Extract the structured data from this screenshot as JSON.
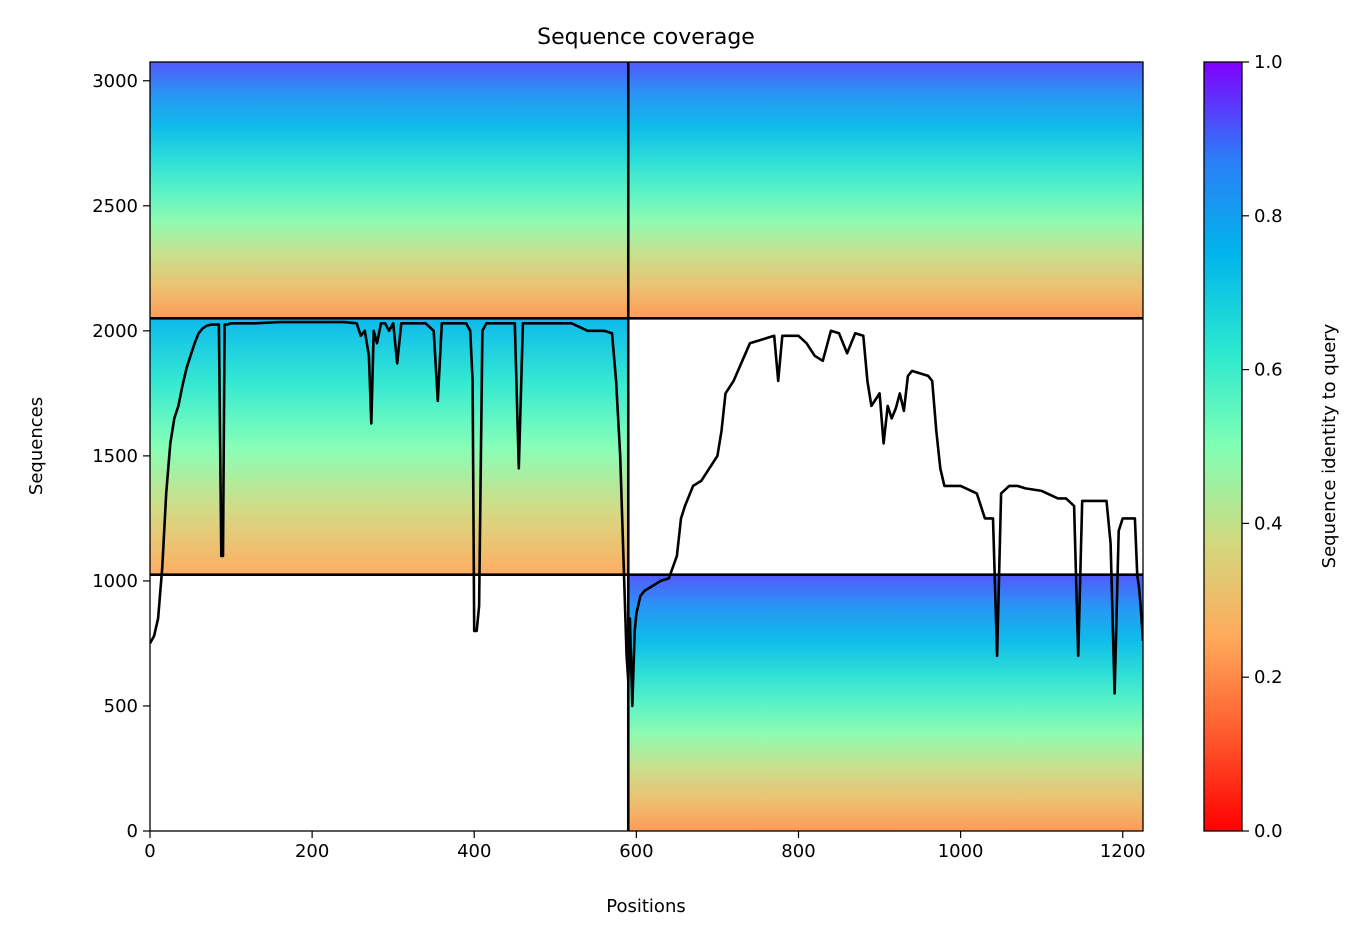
{
  "chart_data": {
    "type": "heatmap",
    "title": "Sequence coverage",
    "xlabel": "Positions",
    "ylabel": "Sequences",
    "xlim": [
      0,
      1225
    ],
    "ylim": [
      0,
      3075
    ],
    "xticks": [
      0,
      200,
      400,
      600,
      800,
      1000,
      1200
    ],
    "yticks": [
      0,
      500,
      1000,
      1500,
      2000,
      2500,
      3000
    ],
    "grid": false,
    "colorbar": {
      "label": "Sequence identity to query",
      "colormap": "rainbow_r",
      "range": [
        0,
        1
      ],
      "ticks": [
        0.0,
        0.2,
        0.4,
        0.6,
        0.8,
        1.0
      ],
      "tick_labels": [
        "0.0",
        "0.2",
        "0.4",
        "0.6",
        "0.8",
        "1.0"
      ]
    },
    "segment_boundaries": {
      "x": [
        590
      ],
      "y": [
        1025,
        2050
      ]
    },
    "blocks": [
      {
        "name": "top-left",
        "x": [
          0,
          590
        ],
        "y": [
          2050,
          3075
        ],
        "identity_top": 0.92,
        "identity_bottom": 0.22
      },
      {
        "name": "middle-left",
        "x": [
          0,
          590
        ],
        "y": [
          1025,
          2050
        ],
        "identity_top": 0.75,
        "identity_bottom": 0.25
      },
      {
        "name": "top-right",
        "x": [
          590,
          1225
        ],
        "y": [
          2050,
          3075
        ],
        "identity_top": 0.92,
        "identity_bottom": 0.22
      },
      {
        "name": "bottom-right",
        "x": [
          590,
          1225
        ],
        "y": [
          0,
          1025
        ],
        "identity_top": 0.92,
        "identity_bottom": 0.22
      }
    ],
    "coverage_line": {
      "color": "#000000",
      "x": [
        0,
        5,
        10,
        15,
        20,
        25,
        30,
        35,
        40,
        45,
        50,
        55,
        60,
        65,
        70,
        75,
        80,
        85,
        88,
        90,
        92,
        95,
        100,
        130,
        160,
        200,
        240,
        255,
        260,
        265,
        270,
        273,
        276,
        280,
        285,
        290,
        295,
        300,
        305,
        310,
        320,
        330,
        340,
        350,
        355,
        360,
        365,
        370,
        390,
        395,
        398,
        400,
        403,
        406,
        410,
        415,
        420,
        440,
        450,
        455,
        460,
        470,
        500,
        520,
        540,
        560,
        570,
        575,
        580,
        585,
        588,
        590,
        592,
        595,
        598,
        600,
        605,
        610,
        620,
        630,
        640,
        650,
        655,
        660,
        670,
        680,
        690,
        700,
        705,
        710,
        720,
        740,
        760,
        770,
        775,
        780,
        800,
        810,
        820,
        830,
        840,
        850,
        860,
        870,
        880,
        885,
        890,
        900,
        905,
        910,
        915,
        920,
        925,
        930,
        935,
        940,
        950,
        960,
        965,
        970,
        975,
        980,
        1000,
        1020,
        1030,
        1040,
        1045,
        1050,
        1060,
        1070,
        1080,
        1100,
        1120,
        1130,
        1140,
        1145,
        1150,
        1160,
        1170,
        1180,
        1185,
        1190,
        1195,
        1200,
        1210,
        1215,
        1218,
        1220,
        1222,
        1225
      ],
      "y": [
        750,
        780,
        850,
        1050,
        1350,
        1550,
        1650,
        1700,
        1780,
        1850,
        1900,
        1950,
        1990,
        2010,
        2020,
        2025,
        2025,
        2025,
        1100,
        1100,
        2025,
        2025,
        2030,
        2030,
        2035,
        2035,
        2035,
        2030,
        1980,
        2000,
        1900,
        1630,
        2000,
        1950,
        2030,
        2030,
        2000,
        2030,
        1870,
        2030,
        2030,
        2030,
        2030,
        2000,
        1720,
        2030,
        2030,
        2030,
        2030,
        2000,
        1800,
        800,
        800,
        900,
        2000,
        2030,
        2030,
        2030,
        2030,
        1450,
        2030,
        2030,
        2030,
        2030,
        2000,
        2000,
        1990,
        1800,
        1500,
        1000,
        700,
        600,
        850,
        500,
        800,
        870,
        940,
        960,
        980,
        1000,
        1010,
        1100,
        1250,
        1300,
        1380,
        1400,
        1450,
        1500,
        1600,
        1750,
        1800,
        1950,
        1970,
        1980,
        1800,
        1980,
        1980,
        1950,
        1900,
        1880,
        2000,
        1990,
        1910,
        1990,
        1980,
        1800,
        1700,
        1750,
        1550,
        1700,
        1650,
        1690,
        1750,
        1680,
        1820,
        1840,
        1830,
        1820,
        1800,
        1600,
        1450,
        1380,
        1380,
        1350,
        1250,
        1250,
        700,
        1350,
        1380,
        1380,
        1370,
        1360,
        1330,
        1330,
        1300,
        700,
        1320,
        1320,
        1320,
        1320,
        1150,
        550,
        1200,
        1250,
        1250,
        1250,
        1020,
        980,
        900,
        760
      ]
    }
  }
}
